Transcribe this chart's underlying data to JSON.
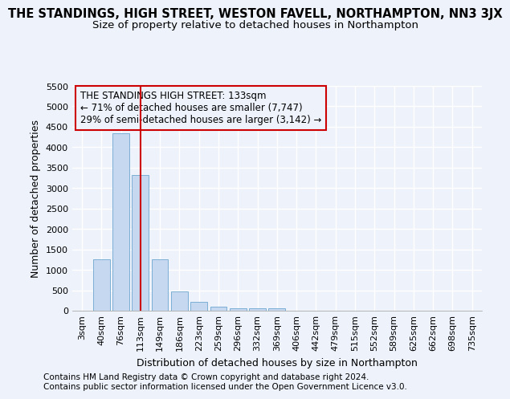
{
  "title": "THE STANDINGS, HIGH STREET, WESTON FAVELL, NORTHAMPTON, NN3 3JX",
  "subtitle": "Size of property relative to detached houses in Northampton",
  "xlabel": "Distribution of detached houses by size in Northampton",
  "ylabel": "Number of detached properties",
  "footer1": "Contains HM Land Registry data © Crown copyright and database right 2024.",
  "footer2": "Contains public sector information licensed under the Open Government Licence v3.0.",
  "categories": [
    "3sqm",
    "40sqm",
    "76sqm",
    "113sqm",
    "149sqm",
    "186sqm",
    "223sqm",
    "259sqm",
    "296sqm",
    "332sqm",
    "369sqm",
    "406sqm",
    "442sqm",
    "479sqm",
    "515sqm",
    "552sqm",
    "589sqm",
    "625sqm",
    "662sqm",
    "698sqm",
    "735sqm"
  ],
  "values": [
    0,
    1260,
    4350,
    3310,
    1260,
    480,
    210,
    90,
    60,
    60,
    60,
    0,
    0,
    0,
    0,
    0,
    0,
    0,
    0,
    0,
    0
  ],
  "bar_color": "#c5d8ef",
  "bar_edge_color": "#7bafd4",
  "ylim": [
    0,
    5500
  ],
  "yticks": [
    0,
    500,
    1000,
    1500,
    2000,
    2500,
    3000,
    3500,
    4000,
    4500,
    5000,
    5500
  ],
  "vline_x": 3,
  "vline_color": "#cc0000",
  "annotation_text": "THE STANDINGS HIGH STREET: 133sqm\n← 71% of detached houses are smaller (7,747)\n29% of semi-detached houses are larger (3,142) →",
  "annotation_box_color": "#cc0000",
  "bg_color": "#eef2fb",
  "grid_color": "#ffffff",
  "title_fontsize": 10.5,
  "subtitle_fontsize": 9.5,
  "axis_label_fontsize": 9,
  "tick_fontsize": 8,
  "footer_fontsize": 7.5
}
